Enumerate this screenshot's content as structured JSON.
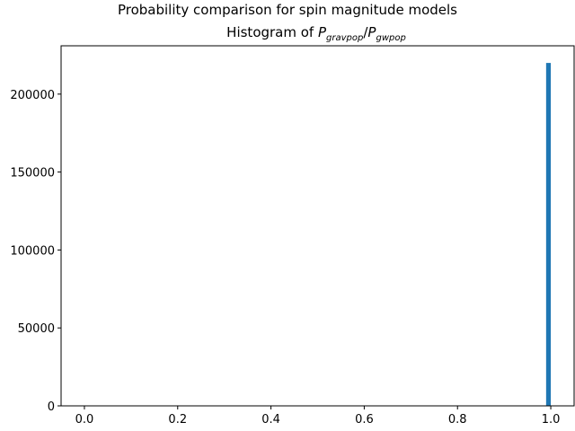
{
  "chart_data": {
    "type": "bar",
    "suptitle": "Probability comparison for spin magnitude models",
    "title": {
      "prefix": "Histogram of ",
      "numerator": "P",
      "numerator_sub": "gravpop",
      "slash": "/",
      "denominator": "P",
      "denominator_sub": "gwpop"
    },
    "xlabel": "",
    "ylabel": "",
    "xlim": [
      -0.05,
      1.05
    ],
    "ylim": [
      0,
      231000
    ],
    "xticks": [
      0.0,
      0.2,
      0.4,
      0.6,
      0.8,
      1.0
    ],
    "xtick_labels": [
      "0.0",
      "0.2",
      "0.4",
      "0.6",
      "0.8",
      "1.0"
    ],
    "yticks": [
      0,
      50000,
      100000,
      150000,
      200000
    ],
    "ytick_labels": [
      "0",
      "50000",
      "100000",
      "150000",
      "200000"
    ],
    "bar_color": "#1f77b4",
    "bins": [
      {
        "x0": 0.99,
        "x1": 1.0,
        "count": 220000
      }
    ],
    "grid": false,
    "legend": null
  }
}
